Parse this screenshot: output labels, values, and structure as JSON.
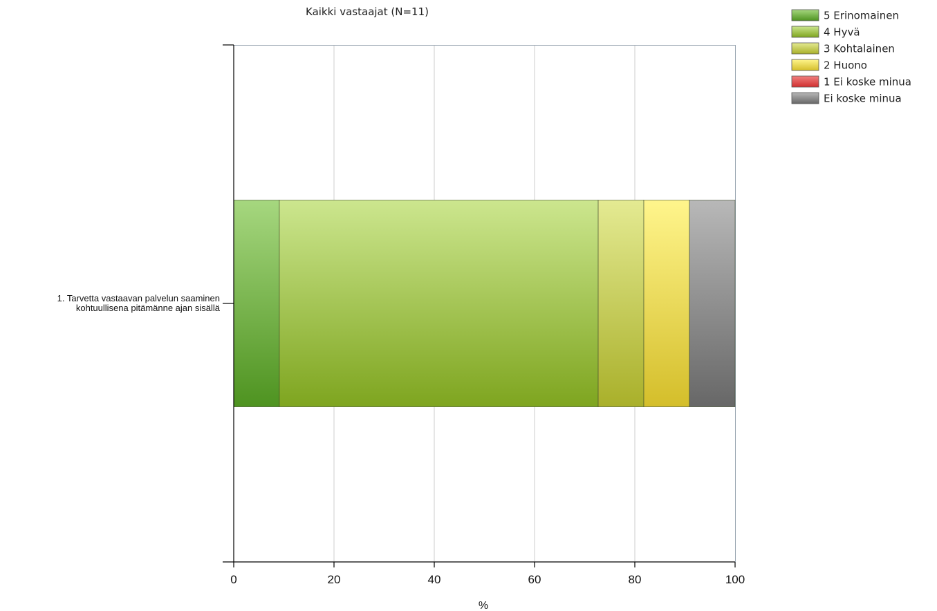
{
  "chart_data": {
    "type": "bar",
    "orientation": "horizontal",
    "stacked": true,
    "title": "Kaikki vastaajat (N=11)",
    "xlabel": "%",
    "ylabel": "",
    "xlim": [
      0,
      100
    ],
    "x_ticks": [
      "0",
      "20",
      "40",
      "60",
      "80",
      "100"
    ],
    "grid": true,
    "legend_position": "top-right",
    "categories": [
      [
        "1. Tarvetta vastaavan palvelun saaminen",
        "kohtuullisena pitämänne ajan sisällä"
      ]
    ],
    "series": [
      {
        "name": "5 Erinomainen",
        "values": [
          9.1
        ],
        "color": "#6aaa3a",
        "color_top": "#a6d77f",
        "color_bottom": "#4e9320"
      },
      {
        "name": "4 Hyvä",
        "values": [
          63.6
        ],
        "color": "#9cc24a",
        "color_top": "#cce68e",
        "color_bottom": "#7ea51f"
      },
      {
        "name": "3 Kohtalainen",
        "values": [
          9.1
        ],
        "color": "#c4c84a",
        "color_top": "#e4ea92",
        "color_bottom": "#a9b02a"
      },
      {
        "name": "2 Huono",
        "values": [
          9.1
        ],
        "color": "#e8d84a",
        "color_top": "#fff58c",
        "color_bottom": "#d4be2a"
      },
      {
        "name": "1 Ei koske minua",
        "values": [
          0
        ],
        "color": "#e05050",
        "color_top": "#f08080",
        "color_bottom": "#d03030"
      },
      {
        "name": "Ei koske minua",
        "values": [
          9.1
        ],
        "color": "#909090",
        "color_top": "#b8b8b8",
        "color_bottom": "#676767"
      }
    ]
  }
}
